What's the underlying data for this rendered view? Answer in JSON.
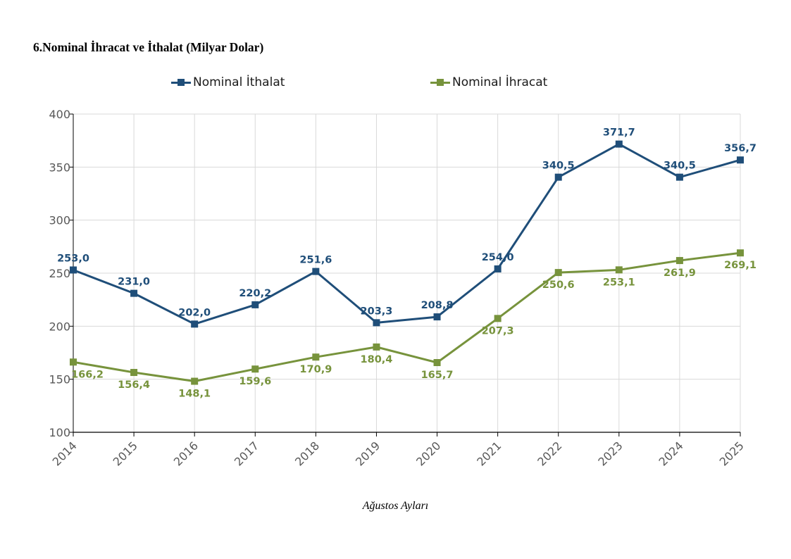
{
  "chart_data": {
    "type": "line",
    "title": "6.Nominal İhracat ve İthalat (Milyar Dolar)",
    "xlabel": "Ağustos Ayları",
    "ylabel": "",
    "categories": [
      "2014",
      "2015",
      "2016",
      "2017",
      "2018",
      "2019",
      "2020",
      "2021",
      "2022",
      "2023",
      "2024",
      "2025"
    ],
    "ylim": [
      100,
      400
    ],
    "yticks": [
      100,
      150,
      200,
      250,
      300,
      350,
      400
    ],
    "grid": true,
    "legend_position": "top",
    "series": [
      {
        "name": "Nominal İthalat",
        "color": "#1f4e79",
        "label_position": "above",
        "values": [
          253.0,
          231.0,
          202.0,
          220.2,
          251.6,
          203.3,
          208.8,
          254.0,
          340.5,
          371.7,
          340.5,
          356.7
        ],
        "labels": [
          "253,0",
          "231,0",
          "202,0",
          "220,2",
          "251,6",
          "203,3",
          "208,8",
          "254,0",
          "340,5",
          "371,7",
          "340,5",
          "356,7"
        ]
      },
      {
        "name": "Nominal İhracat",
        "color": "#77933c",
        "label_position": "below",
        "values": [
          166.2,
          156.4,
          148.1,
          159.6,
          170.9,
          180.4,
          165.7,
          207.3,
          250.6,
          253.1,
          261.9,
          269.1
        ],
        "labels": [
          "166,2",
          "156,4",
          "148,1",
          "159,6",
          "170,9",
          "180,4",
          "165,7",
          "207,3",
          "250,6",
          "253,1",
          "261,9",
          "269,1"
        ]
      }
    ]
  }
}
